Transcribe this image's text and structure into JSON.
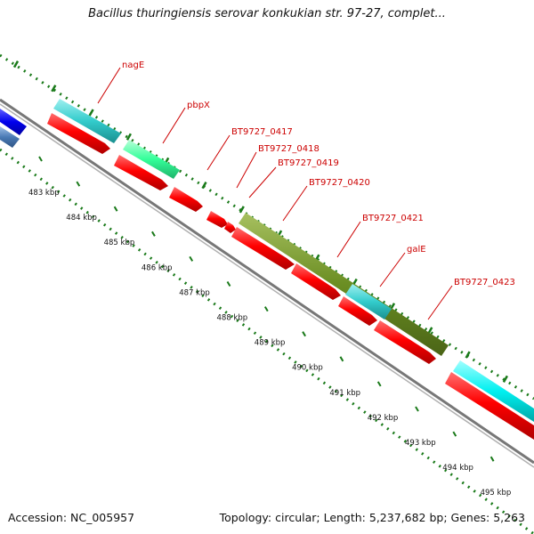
{
  "title": "Bacillus thuringiensis serovar konkukian str. 97-27, complet...",
  "footer": {
    "accession": "Accession: NC_005957",
    "topology": "Topology: circular; Length: 5,237,682 bp; Genes: 5,263"
  },
  "scale": {
    "tick_labels": [
      "483 kbp",
      "484 kbp",
      "485 kbp",
      "486 kbp",
      "487 kbp",
      "488 kbp",
      "489 kbp",
      "490 kbp",
      "491 kbp",
      "492 kbp",
      "493 kbp",
      "494 kbp",
      "495 kbp"
    ]
  },
  "genes": [
    {
      "label": "nagE"
    },
    {
      "label": "pbpX"
    },
    {
      "label": "BT9727_0417"
    },
    {
      "label": "BT9727_0418"
    },
    {
      "label": "BT9727_0419"
    },
    {
      "label": "BT9727_0420"
    },
    {
      "label": "BT9727_0421"
    },
    {
      "label": "galE"
    },
    {
      "label": "BT9727_0423"
    }
  ],
  "colors": {
    "cds_forward": "#ff0000",
    "backbone": "#808080",
    "tick_green": "#1a7a1a",
    "label_red": "#cc0000",
    "feature_cyan": "#33cccc",
    "feature_green": "#33ff99",
    "feature_olive": "#6b8e23",
    "feature_blue": "#0000ee",
    "feature_steel": "#4a7ab5",
    "feature_bright_cyan": "#00f0f0"
  }
}
